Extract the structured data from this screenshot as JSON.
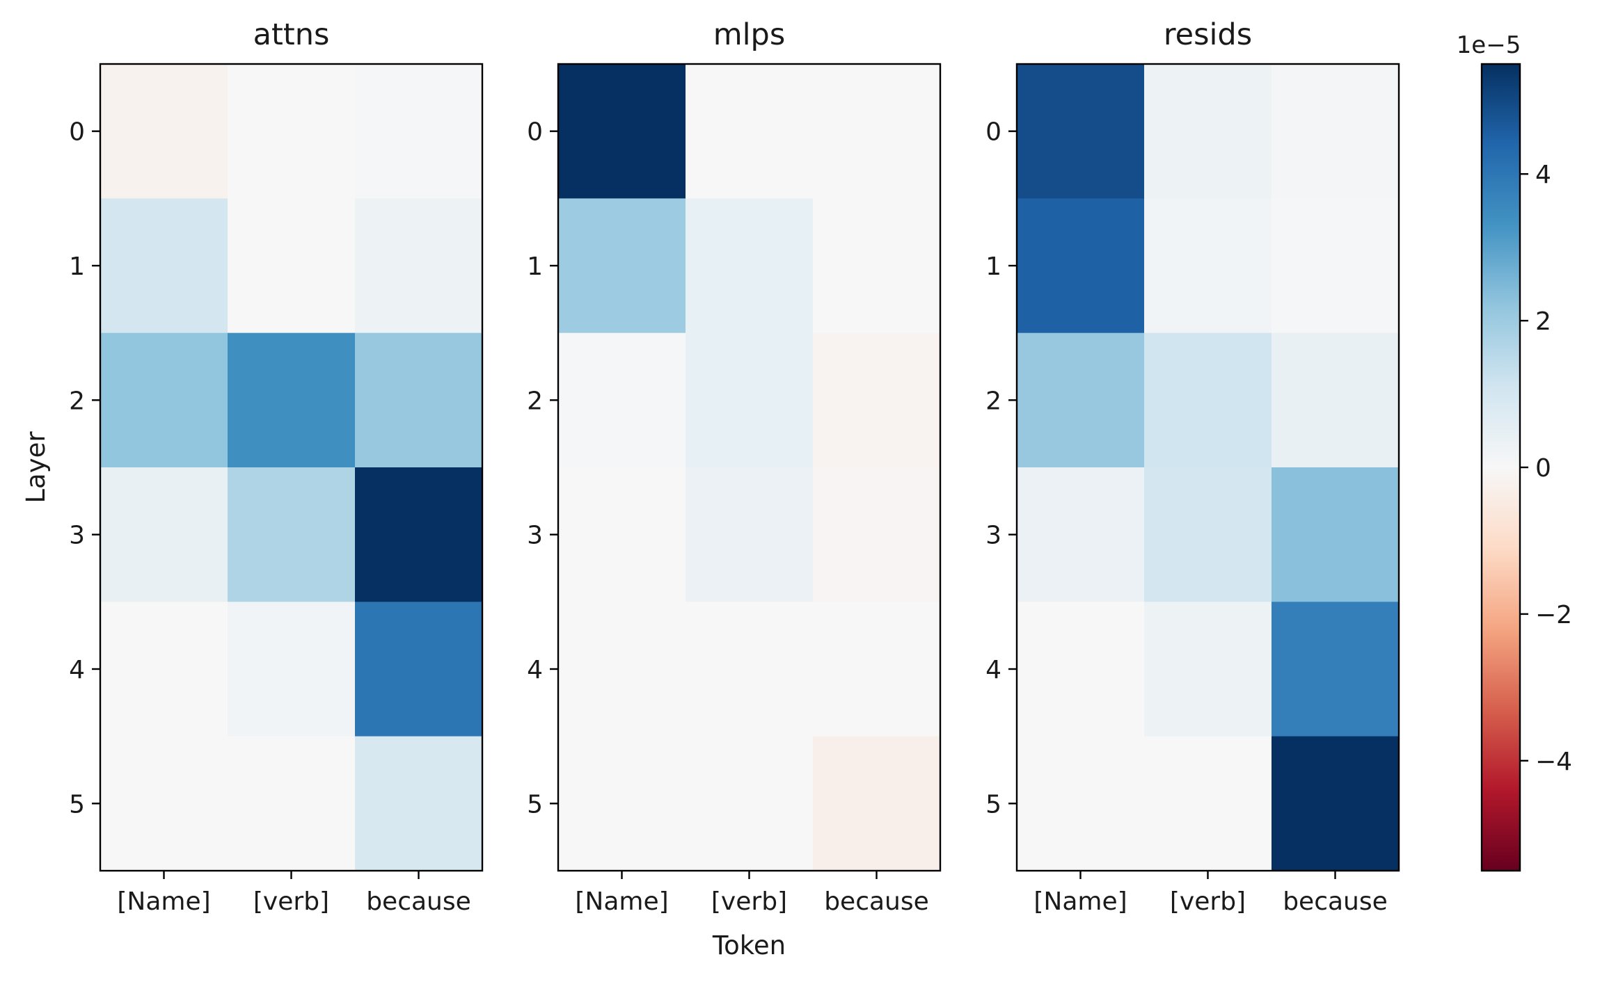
{
  "chart_data": {
    "type": "heatmap",
    "panels": [
      {
        "title": "attns",
        "x_tick_labels": [
          "[Name]",
          "[verb]",
          "because"
        ],
        "y_tick_labels": [
          "0",
          "1",
          "2",
          "3",
          "4",
          "5"
        ],
        "values": [
          [
            -0.2,
            0.0,
            0.05
          ],
          [
            1.0,
            0.0,
            0.3
          ],
          [
            2.2,
            3.4,
            2.1
          ],
          [
            0.4,
            1.7,
            5.5
          ],
          [
            0.0,
            0.2,
            4.0
          ],
          [
            0.0,
            0.0,
            0.9
          ]
        ]
      },
      {
        "title": "mlps",
        "x_tick_labels": [
          "[Name]",
          "[verb]",
          "because"
        ],
        "y_tick_labels": [
          "0",
          "1",
          "2",
          "3",
          "4",
          "5"
        ],
        "values": [
          [
            5.5,
            0.0,
            0.0
          ],
          [
            2.0,
            0.45,
            0.0
          ],
          [
            0.05,
            0.45,
            -0.15
          ],
          [
            0.0,
            0.35,
            -0.1
          ],
          [
            0.0,
            0.0,
            0.0
          ],
          [
            0.0,
            0.0,
            -0.3
          ]
        ]
      },
      {
        "title": "resids",
        "x_tick_labels": [
          "[Name]",
          "[verb]",
          "because"
        ],
        "y_tick_labels": [
          "0",
          "1",
          "2",
          "3",
          "4",
          "5"
        ],
        "values": [
          [
            4.9,
            0.3,
            0.1
          ],
          [
            4.5,
            0.2,
            0.05
          ],
          [
            2.1,
            1.1,
            0.4
          ],
          [
            0.35,
            1.0,
            2.3
          ],
          [
            0.0,
            0.3,
            3.8
          ],
          [
            0.0,
            0.0,
            5.5
          ]
        ]
      }
    ],
    "value_scale_label": "1e−5",
    "xlabel": "Token",
    "ylabel": "Layer",
    "colormap": "RdBu",
    "vmin": -5.5,
    "vmax": 5.5,
    "colorbar_ticks": [
      4,
      2,
      0,
      -2,
      -4
    ],
    "colorbar_tick_labels": [
      "4",
      "2",
      "0",
      "−2",
      "−4"
    ]
  }
}
